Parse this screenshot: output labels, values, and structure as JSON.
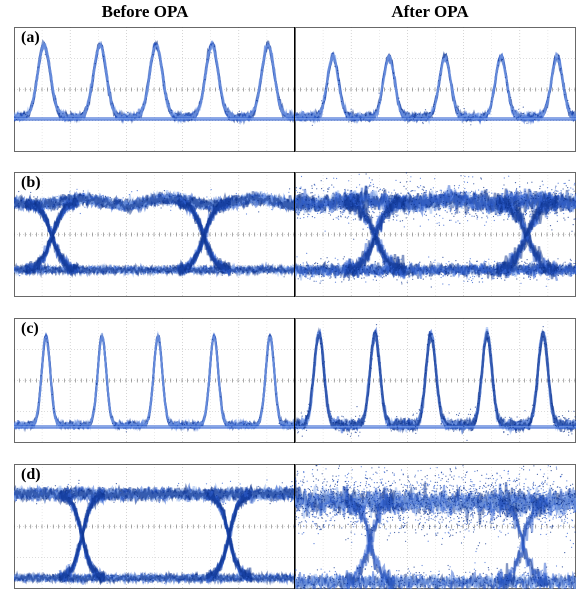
{
  "headers": {
    "before": "Before OPA",
    "after": "After OPA"
  },
  "rows": [
    {
      "label": "(a)",
      "kind": "rz_pulses"
    },
    {
      "label": "(b)",
      "kind": "nrz_eye_wide"
    },
    {
      "label": "(c)",
      "kind": "rz_pulses_narrow"
    },
    {
      "label": "(d)",
      "kind": "nrz_eye"
    }
  ],
  "colors": {
    "trace_dark": "#0a2f8a",
    "trace_mid": "#2f5fd0",
    "trace_light": "#8fb1ee",
    "grid": "#b9b9b9",
    "frame": "#444444"
  }
}
